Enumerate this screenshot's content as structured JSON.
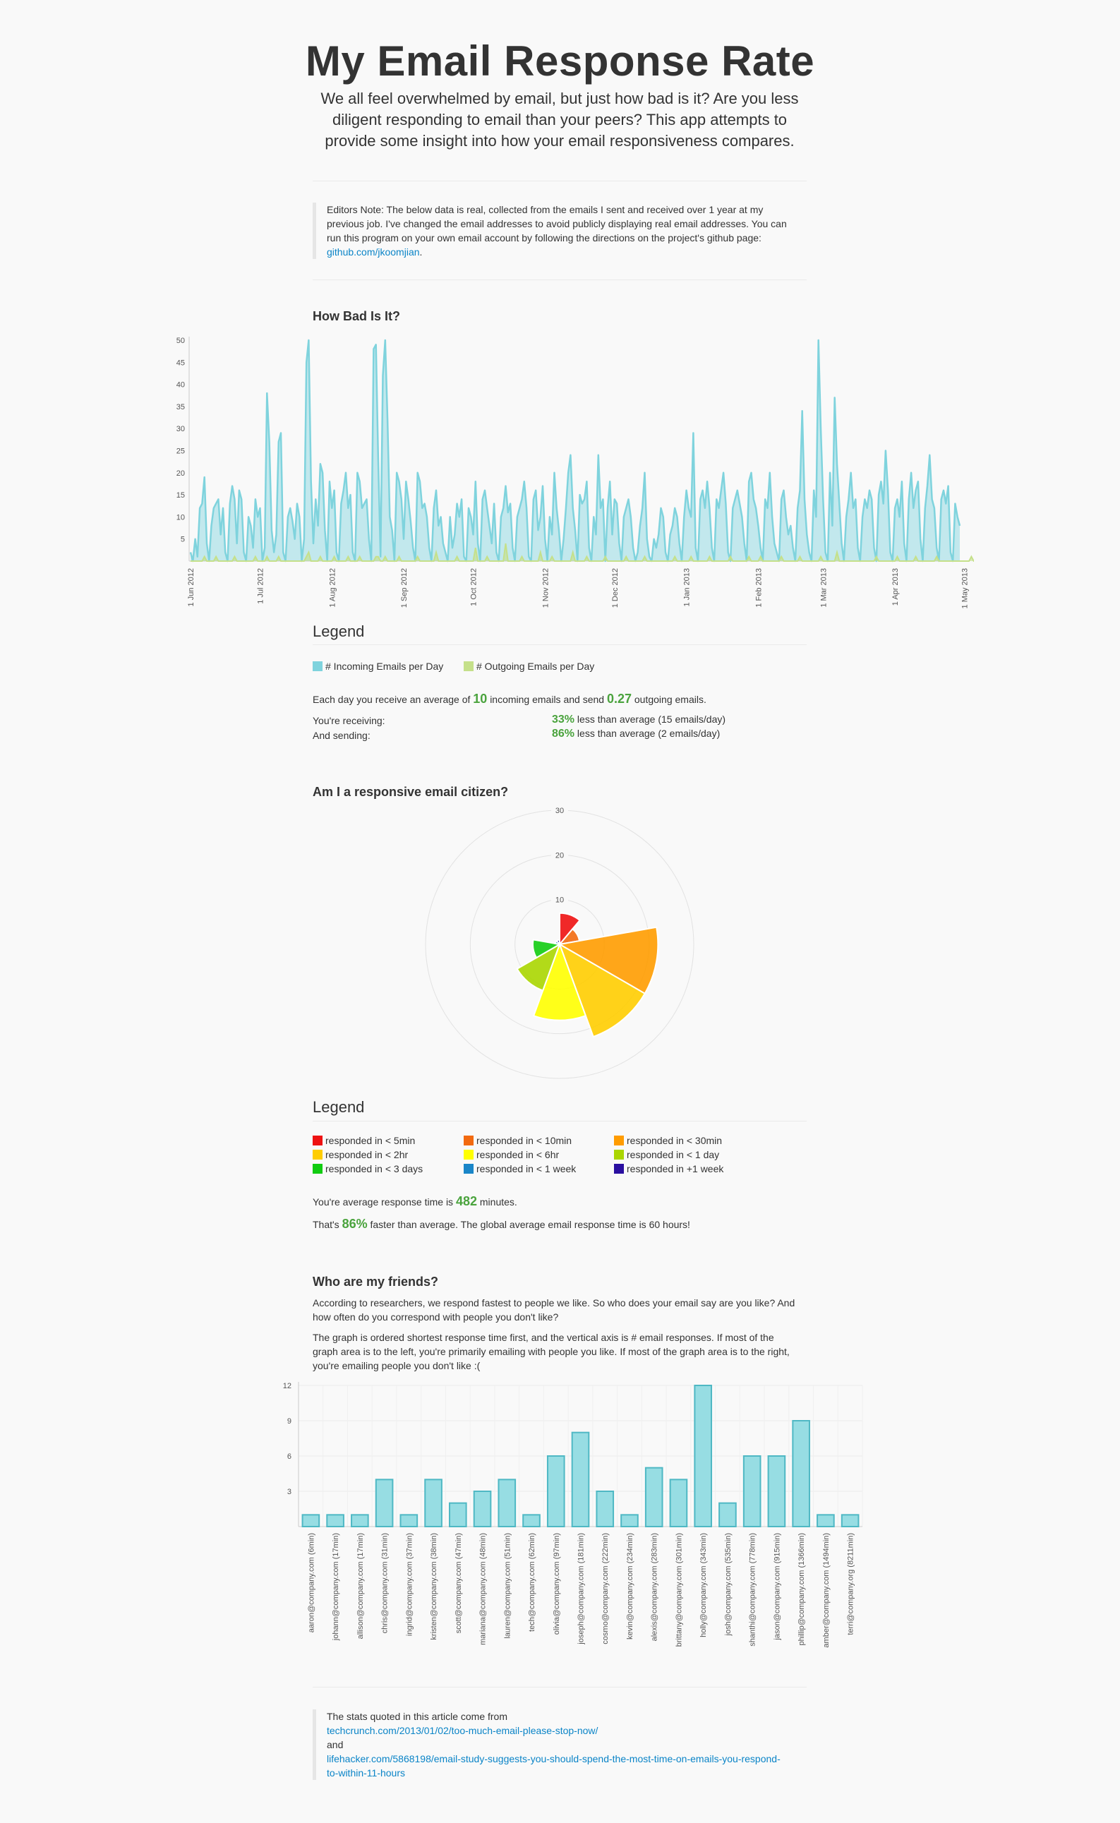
{
  "header": {
    "title": "My Email Response Rate",
    "intro_line1": "We all feel overwhelmed by email, but just how bad is it? Are you less",
    "intro_line2": "diligent responding to email than your peers? This app attempts to",
    "intro_line3": "provide some insight into how your email responsiveness compares."
  },
  "editor_note": {
    "line1": "Editors Note: The below data is real, collected from the emails I sent and received over 1 year at my",
    "line2": "previous job. I've changed the email addresses to avoid publicly displaying real email addresses. You can",
    "line3": "run this program on your own email account by following the directions on the project's github page:",
    "link": "github.com/jkoomjian",
    "period": "."
  },
  "section1": {
    "heading": "How Bad Is It?",
    "legend_title": "Legend",
    "legend": [
      {
        "label": "# Incoming Emails per Day",
        "color": "#7fd3dd"
      },
      {
        "label": "# Outgoing Emails per Day",
        "color": "#c5e08a"
      }
    ],
    "avg_text_a": "Each day you receive an average of",
    "avg_in": "10",
    "avg_text_b": "incoming emails and send",
    "avg_out": "0.27",
    "avg_text_c": "outgoing emails.",
    "receiving_label": "You're receiving:",
    "receiving_pct": "33%",
    "receiving_text": "less than average (15 emails/day)",
    "sending_label": "And sending:",
    "sending_pct": "86%",
    "sending_text": "less than average (2 emails/day)"
  },
  "section2": {
    "heading": "Am I a responsive email citizen?",
    "legend_title": "Legend",
    "legend": [
      {
        "label": "responded in < 5min",
        "color": "#ee1111"
      },
      {
        "label": "responded in < 10min",
        "color": "#f26a10"
      },
      {
        "label": "responded in < 30min",
        "color": "#ff9c00"
      },
      {
        "label": "responded in < 2hr",
        "color": "#ffcd00"
      },
      {
        "label": "responded in < 6hr",
        "color": "#ffff00"
      },
      {
        "label": "responded in < 1 day",
        "color": "#aad600"
      },
      {
        "label": "responded in < 3 days",
        "color": "#11cc11"
      },
      {
        "label": "responded in < 1 week",
        "color": "#1a86c8"
      },
      {
        "label": "responded in +1 week",
        "color": "#2a0fa0"
      }
    ],
    "avg_text_a": "You're average response time is",
    "avg_minutes": "482",
    "avg_text_b": "minutes.",
    "faster_a": "That's",
    "faster_pct": "86%",
    "faster_b": "faster than average. The global average email response time is 60 hours!"
  },
  "section3": {
    "heading": "Who are my friends?",
    "p1_line1": "According to researchers, we respond fastest to people we like. So who does your email say are you like? And",
    "p1_line2": "how often do you correspond with people you don't like?",
    "p2_line1": "The graph is ordered shortest response time first, and the vertical axis is # email responses. If most of the",
    "p2_line2": "graph area is to the left, you're primarily emailing with people you like. If most of the graph area is to the right,",
    "p2_line3": "you're emailing people you don't like :("
  },
  "footer": {
    "line1": "The stats quoted in this article come from",
    "link1": "techcrunch.com/2013/01/02/too-much-email-please-stop-now/",
    "and": "and",
    "link2a": "lifehacker.com/5868198/email-study-suggests-you-should-spend-the-most-time-on-emails-you-respond-",
    "link2b": "to-within-11-hours"
  },
  "chart_data": [
    {
      "type": "area",
      "title": "How Bad Is It?",
      "ylim": [
        0,
        50
      ],
      "yticks": [
        5,
        10,
        15,
        20,
        25,
        30,
        35,
        40,
        45,
        50
      ],
      "xticks": [
        "1 Jun 2012",
        "1 Jul 2012",
        "1 Aug 2012",
        "1 Sep 2012",
        "1 Oct 2012",
        "1 Nov 2012",
        "1 Dec 2012",
        "1 Jan 2013",
        "1 Feb 2013",
        "1 Mar 2013",
        "1 Apr 2013",
        "1 May 2013"
      ],
      "x_start": "2012-06-01",
      "series": [
        {
          "name": "# Incoming Emails per Day",
          "color": "#7fd3dd",
          "values": [
            2,
            0,
            5,
            1,
            12,
            13,
            19,
            4,
            0,
            8,
            12,
            13,
            14,
            6,
            12,
            2,
            0,
            13,
            17,
            14,
            4,
            16,
            14,
            2,
            0,
            10,
            8,
            3,
            14,
            10,
            12,
            0,
            3,
            38,
            27,
            7,
            2,
            6,
            27,
            29,
            2,
            0,
            10,
            12,
            9,
            5,
            13,
            10,
            0,
            5,
            45,
            50,
            18,
            4,
            14,
            8,
            22,
            20,
            7,
            0,
            18,
            12,
            16,
            2,
            0,
            13,
            16,
            20,
            12,
            15,
            2,
            0,
            20,
            18,
            12,
            13,
            14,
            5,
            0,
            48,
            49,
            23,
            1,
            42,
            50,
            32,
            10,
            7,
            0,
            20,
            18,
            14,
            5,
            18,
            14,
            9,
            3,
            0,
            20,
            18,
            12,
            13,
            10,
            3,
            0,
            12,
            16,
            8,
            10,
            4,
            2,
            0,
            10,
            3,
            6,
            13,
            10,
            14,
            1,
            0,
            12,
            10,
            6,
            18,
            4,
            0,
            14,
            16,
            12,
            8,
            4,
            13,
            2,
            0,
            10,
            12,
            17,
            11,
            13,
            3,
            0,
            10,
            12,
            14,
            18,
            12,
            1,
            0,
            14,
            16,
            7,
            10,
            17,
            5,
            0,
            10,
            6,
            20,
            12,
            7,
            0,
            5,
            12,
            20,
            24,
            12,
            7,
            0,
            15,
            13,
            14,
            18,
            3,
            0,
            10,
            6,
            24,
            12,
            14,
            0,
            12,
            18,
            6,
            14,
            13,
            4,
            0,
            10,
            12,
            14,
            10,
            3,
            0,
            2,
            8,
            12,
            20,
            5,
            1,
            0,
            5,
            3,
            6,
            12,
            10,
            2,
            0,
            6,
            8,
            12,
            10,
            4,
            0,
            10,
            16,
            12,
            10,
            29,
            3,
            0,
            14,
            16,
            12,
            18,
            12,
            3,
            0,
            14,
            12,
            16,
            20,
            13,
            2,
            0,
            12,
            14,
            16,
            13,
            10,
            4,
            0,
            18,
            20,
            14,
            12,
            8,
            3,
            0,
            14,
            12,
            20,
            10,
            4,
            2,
            0,
            14,
            16,
            10,
            6,
            8,
            3,
            0,
            12,
            16,
            34,
            14,
            6,
            2,
            0,
            16,
            10,
            50,
            30,
            14,
            2,
            0,
            20,
            8,
            37,
            22,
            13,
            4,
            0,
            10,
            14,
            20,
            12,
            14,
            3,
            0,
            10,
            14,
            12,
            16,
            14,
            3,
            0,
            15,
            18,
            13,
            25,
            16,
            2,
            0,
            12,
            14,
            10,
            18,
            4,
            0,
            14,
            20,
            12,
            16,
            18,
            5,
            0,
            12,
            17,
            24,
            14,
            12,
            3,
            0,
            14,
            16,
            13,
            17,
            2,
            0,
            13,
            10,
            8
          ]
        },
        {
          "name": "# Outgoing Emails per Day",
          "color": "#c5e08a",
          "values": [
            0,
            0,
            0,
            0,
            0,
            0,
            1,
            0,
            0,
            0,
            0,
            1,
            0,
            0,
            0,
            0,
            0,
            0,
            0,
            1,
            0,
            0,
            0,
            0,
            0,
            0,
            0,
            0,
            1,
            0,
            0,
            0,
            0,
            1,
            0,
            0,
            0,
            0,
            1,
            0,
            0,
            0,
            0,
            0,
            0,
            0,
            0,
            0,
            0,
            0,
            1,
            2,
            0,
            0,
            0,
            0,
            1,
            0,
            0,
            0,
            0,
            0,
            1,
            0,
            0,
            0,
            0,
            0,
            1,
            0,
            0,
            0,
            0,
            1,
            0,
            0,
            0,
            0,
            0,
            0,
            1,
            1,
            0,
            0,
            1,
            0,
            0,
            0,
            0,
            0,
            1,
            0,
            0,
            0,
            0,
            0,
            0,
            0,
            1,
            0,
            0,
            0,
            0,
            0,
            0,
            0,
            2,
            0,
            0,
            0,
            0,
            0,
            0,
            0,
            0,
            1,
            0,
            0,
            0,
            0,
            0,
            0,
            0,
            3,
            0,
            0,
            0,
            0,
            1,
            0,
            0,
            0,
            0,
            0,
            0,
            0,
            4,
            0,
            0,
            0,
            0,
            0,
            0,
            1,
            0,
            0,
            0,
            0,
            0,
            0,
            0,
            2,
            0,
            0,
            0,
            0,
            1,
            0,
            0,
            0,
            0,
            0,
            0,
            0,
            0,
            2,
            0,
            0,
            0,
            0,
            0,
            1,
            0,
            0,
            0,
            0,
            0,
            0,
            0,
            1,
            0,
            0,
            0,
            0,
            0,
            0,
            0,
            0,
            1,
            0,
            0,
            0,
            0,
            0,
            0,
            0,
            1,
            0,
            0,
            0,
            0,
            0,
            0,
            0,
            0,
            0,
            0,
            0,
            0,
            1,
            0,
            0,
            0,
            0,
            0,
            0,
            1,
            0,
            0,
            0,
            0,
            0,
            0,
            0,
            1,
            0,
            0,
            0,
            0,
            0,
            0,
            0,
            0,
            1,
            0,
            0,
            0,
            0,
            0,
            0,
            0,
            1,
            0,
            0,
            0,
            0,
            1,
            0,
            0,
            0,
            0,
            0,
            0,
            0,
            0,
            1,
            0,
            0,
            0,
            0,
            0,
            0,
            0,
            1,
            0,
            0,
            0,
            0,
            0,
            0,
            0,
            0,
            1,
            0,
            0,
            0,
            0,
            0,
            0,
            2,
            0,
            0,
            0,
            0,
            0,
            0,
            0,
            0,
            0,
            0,
            0,
            0,
            0,
            0,
            0,
            0,
            1,
            0,
            0,
            0,
            0,
            0,
            0,
            0,
            0,
            1,
            0,
            0,
            0,
            0,
            0,
            0,
            0,
            1,
            0,
            0,
            0,
            0,
            0,
            0,
            0,
            0,
            1,
            0,
            0,
            0,
            0,
            0,
            0,
            0,
            0,
            0,
            0,
            0,
            0,
            0,
            0,
            1,
            0,
            0
          ]
        }
      ]
    },
    {
      "type": "polar-area",
      "title": "Am I a responsive email citizen?",
      "rlim": [
        0,
        30
      ],
      "rticks": [
        10,
        20,
        30
      ],
      "categories": [
        "responded in < 5min",
        "responded in < 10min",
        "responded in < 30min",
        "responded in < 2hr",
        "responded in < 6hr",
        "responded in < 1 day",
        "responded in < 3 days",
        "responded in < 1 week",
        "responded in +1 week"
      ],
      "values": [
        7,
        4.5,
        22,
        22,
        17,
        11,
        6,
        1,
        1
      ]
    },
    {
      "type": "bar",
      "title": "Who are my friends?",
      "ylim": [
        0,
        12
      ],
      "yticks": [
        3,
        6,
        9,
        12
      ],
      "categories": [
        "aaron@company.com (6min)",
        "johann@company.com (17min)",
        "allison@company.com (17min)",
        "chris@company.com (31min)",
        "ingrid@company.com (37min)",
        "kristen@company.com (38min)",
        "scott@company.com (47min)",
        "mariana@company.com (48min)",
        "lauren@company.com (51min)",
        "tech@company.com (62min)",
        "olivia@company.com (97min)",
        "joseph@company.com (181min)",
        "cosmo@company.com (222min)",
        "kevin@company.com (234min)",
        "alexis@company.com (283min)",
        "brittany@company.com (301min)",
        "holly@company.com (343min)",
        "josh@company.com (535min)",
        "shanthi@company.com (778min)",
        "jason@company.com (915min)",
        "phillip@company.com (1366min)",
        "amber@company.com (1494min)",
        "terri@company.org (8211min)"
      ],
      "values": [
        1,
        1,
        1,
        4,
        1,
        4,
        2,
        3,
        4,
        1,
        6,
        8,
        3,
        1,
        5,
        4,
        12,
        2,
        6,
        6,
        9,
        1,
        1
      ]
    }
  ]
}
